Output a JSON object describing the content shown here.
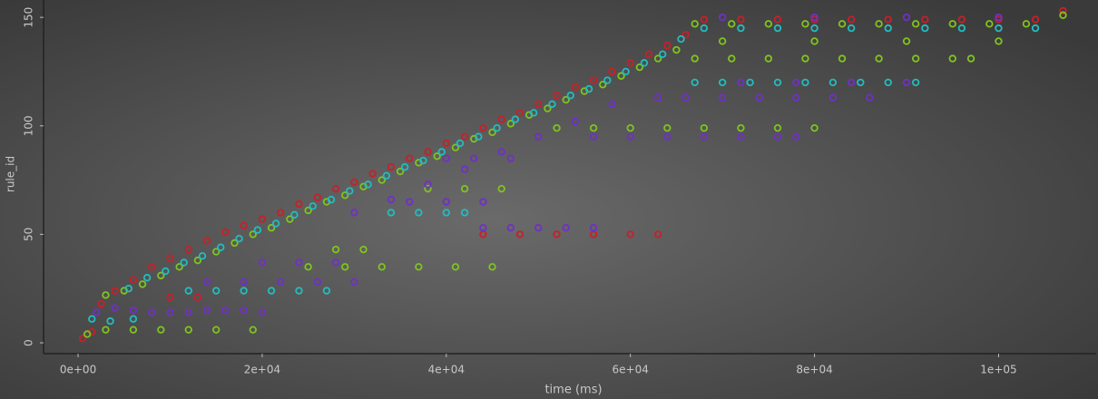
{
  "chart_data": {
    "type": "scatter",
    "x_label": "time (ms)",
    "y_label": "rule_id",
    "xlim": [
      -3750,
      110600
    ],
    "ylim": [
      -5,
      158
    ],
    "xticks": [
      {
        "value": 0,
        "label": "0e+00"
      },
      {
        "value": 20000,
        "label": "2e+04"
      },
      {
        "value": 40000,
        "label": "4e+04"
      },
      {
        "value": 60000,
        "label": "6e+04"
      },
      {
        "value": 80000,
        "label": "8e+04"
      },
      {
        "value": 100000,
        "label": "1e+05"
      }
    ],
    "yticks": [
      0,
      50,
      100,
      150
    ],
    "grid": false,
    "series": [
      {
        "color": "#c8202a",
        "x": [
          500,
          1500,
          2500,
          4000,
          6000,
          8000,
          10000,
          12000,
          14000,
          16000,
          18000,
          20000,
          22000,
          24000,
          26000,
          28000,
          30000,
          32000,
          34000,
          36000,
          38000,
          40000,
          42000,
          44000,
          46000,
          48000,
          50000,
          52000,
          54000,
          56000,
          58000,
          60000,
          62000,
          64000,
          66000,
          68000,
          72000,
          76000,
          80000,
          84000,
          88000,
          92000,
          96000,
          100000,
          104000,
          44000,
          48000,
          52000,
          56000,
          60000,
          63000,
          107000,
          10000,
          13000
        ],
        "values": [
          2,
          5,
          18,
          24,
          29,
          35,
          39,
          43,
          47,
          51,
          54,
          57,
          60,
          64,
          67,
          71,
          74,
          78,
          81,
          85,
          88,
          92,
          95,
          99,
          103,
          106,
          110,
          114,
          118,
          121,
          125,
          129,
          133,
          137,
          142,
          149,
          149,
          149,
          149,
          149,
          149,
          149,
          149,
          149,
          149,
          50,
          50,
          50,
          50,
          50,
          50,
          153,
          21,
          21
        ]
      },
      {
        "color": "#7fc41e",
        "x": [
          1000,
          3000,
          5000,
          7000,
          9000,
          11000,
          13000,
          15000,
          17000,
          19000,
          21000,
          23000,
          25000,
          27000,
          29000,
          31000,
          33000,
          35000,
          37000,
          39000,
          41000,
          43000,
          45000,
          47000,
          49000,
          51000,
          53000,
          55000,
          57000,
          59000,
          61000,
          63000,
          65000,
          67000,
          71000,
          75000,
          79000,
          83000,
          87000,
          91000,
          95000,
          99000,
          103000,
          107000,
          70000,
          80000,
          90000,
          100000,
          67000,
          71000,
          75000,
          79000,
          83000,
          87000,
          91000,
          95000,
          97000,
          52000,
          56000,
          60000,
          64000,
          68000,
          72000,
          76000,
          80000,
          38000,
          42000,
          46000,
          28000,
          31000,
          25000,
          29000,
          33000,
          37000,
          41000,
          45000,
          3000,
          6000,
          9000,
          12000,
          15000,
          19000
        ],
        "values": [
          4,
          22,
          24,
          27,
          31,
          35,
          38,
          42,
          46,
          50,
          53,
          57,
          61,
          65,
          68,
          72,
          75,
          79,
          83,
          86,
          90,
          94,
          97,
          101,
          105,
          108,
          112,
          116,
          119,
          123,
          127,
          131,
          135,
          147,
          147,
          147,
          147,
          147,
          147,
          147,
          147,
          147,
          147,
          151,
          139,
          139,
          139,
          139,
          131,
          131,
          131,
          131,
          131,
          131,
          131,
          131,
          131,
          99,
          99,
          99,
          99,
          99,
          99,
          99,
          99,
          71,
          71,
          71,
          43,
          43,
          35,
          35,
          35,
          35,
          35,
          35,
          6,
          6,
          6,
          6,
          6,
          6
        ]
      },
      {
        "color": "#22bcc0",
        "x": [
          1500,
          3500,
          5500,
          7500,
          9500,
          11500,
          13500,
          15500,
          17500,
          19500,
          21500,
          23500,
          25500,
          27500,
          29500,
          31500,
          33500,
          35500,
          37500,
          39500,
          41500,
          43500,
          45500,
          47500,
          49500,
          51500,
          53500,
          55500,
          57500,
          59500,
          61500,
          63500,
          65500,
          68000,
          72000,
          76000,
          80000,
          84000,
          88000,
          92000,
          96000,
          100000,
          104000,
          67000,
          70000,
          73000,
          76000,
          79000,
          82000,
          85000,
          88000,
          91000,
          34000,
          37000,
          40000,
          42000,
          12000,
          15000,
          18000,
          21000,
          24000,
          27000,
          6000
        ],
        "values": [
          11,
          10,
          25,
          30,
          33,
          37,
          40,
          44,
          48,
          52,
          55,
          59,
          63,
          66,
          70,
          73,
          77,
          81,
          84,
          88,
          92,
          95,
          99,
          103,
          106,
          110,
          114,
          117,
          121,
          125,
          129,
          133,
          140,
          145,
          145,
          145,
          145,
          145,
          145,
          145,
          145,
          145,
          145,
          120,
          120,
          120,
          120,
          120,
          120,
          120,
          120,
          120,
          60,
          60,
          60,
          60,
          24,
          24,
          24,
          24,
          24,
          24,
          11
        ]
      },
      {
        "color": "#7030c8",
        "x": [
          2000,
          4000,
          6000,
          8000,
          10000,
          12000,
          14000,
          16000,
          18000,
          20000,
          14000,
          18000,
          22000,
          26000,
          30000,
          20000,
          24000,
          28000,
          44000,
          47000,
          50000,
          53000,
          56000,
          36000,
          40000,
          44000,
          40000,
          43000,
          47000,
          56000,
          60000,
          64000,
          68000,
          72000,
          76000,
          78000,
          63000,
          66000,
          70000,
          74000,
          78000,
          82000,
          86000,
          72000,
          78000,
          84000,
          90000,
          70000,
          80000,
          90000,
          100000,
          30000,
          34000,
          38000,
          42000,
          46000,
          50000,
          54000,
          58000
        ],
        "values": [
          14,
          16,
          15,
          14,
          14,
          14,
          15,
          15,
          15,
          14,
          28,
          28,
          28,
          28,
          28,
          37,
          37,
          37,
          53,
          53,
          53,
          53,
          53,
          65,
          65,
          65,
          85,
          85,
          85,
          95,
          95,
          95,
          95,
          95,
          95,
          95,
          113,
          113,
          113,
          113,
          113,
          113,
          113,
          120,
          120,
          120,
          120,
          150,
          150,
          150,
          150,
          60,
          66,
          73,
          80,
          88,
          95,
          102,
          110
        ]
      }
    ]
  }
}
